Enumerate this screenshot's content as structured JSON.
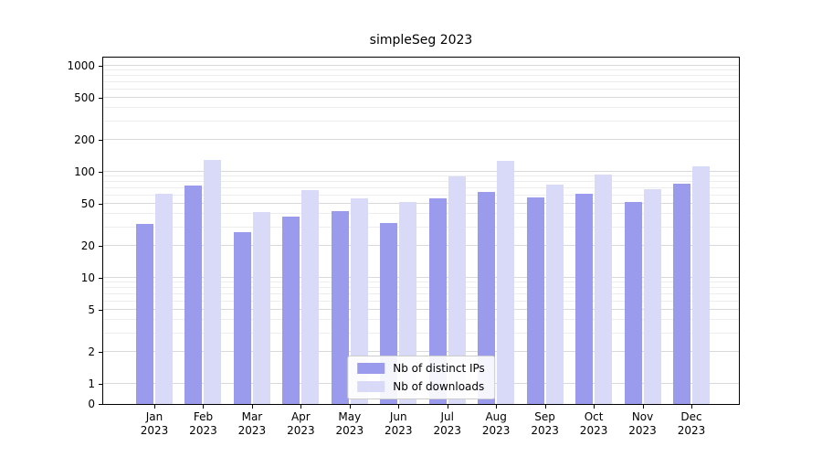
{
  "chart_data": {
    "type": "bar",
    "title": "simpleSeg 2023",
    "xlabel": "",
    "ylabel": "",
    "scale": "symlog",
    "grid": true,
    "legend_position": "lower center",
    "ylim": [
      0,
      1250
    ],
    "yticks": [
      0,
      1,
      2,
      5,
      10,
      20,
      50,
      100,
      200,
      500,
      1000
    ],
    "categories": [
      {
        "month": "Jan",
        "year": "2023"
      },
      {
        "month": "Feb",
        "year": "2023"
      },
      {
        "month": "Mar",
        "year": "2023"
      },
      {
        "month": "Apr",
        "year": "2023"
      },
      {
        "month": "May",
        "year": "2023"
      },
      {
        "month": "Jun",
        "year": "2023"
      },
      {
        "month": "Jul",
        "year": "2023"
      },
      {
        "month": "Aug",
        "year": "2023"
      },
      {
        "month": "Sep",
        "year": "2023"
      },
      {
        "month": "Oct",
        "year": "2023"
      },
      {
        "month": "Nov",
        "year": "2023"
      },
      {
        "month": "Dec",
        "year": "2023"
      }
    ],
    "series": [
      {
        "name": "Nb of distinct IPs",
        "color": "#9b9bee",
        "values": [
          32,
          75,
          27,
          38,
          43,
          33,
          56,
          65,
          57,
          62,
          52,
          77
        ]
      },
      {
        "name": "Nb of downloads",
        "color": "#d9d9f8",
        "values": [
          62,
          130,
          42,
          67,
          56,
          52,
          90,
          128,
          76,
          94,
          68,
          112
        ]
      }
    ]
  }
}
